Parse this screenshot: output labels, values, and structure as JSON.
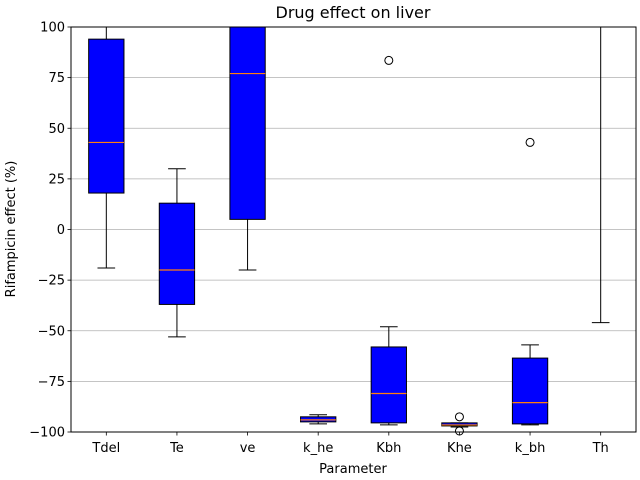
{
  "chart_data": {
    "type": "box",
    "title": "Drug effect on liver",
    "xlabel": "Parameter",
    "ylabel": "Rifampicin effect (%)",
    "ylim": [
      -100,
      100
    ],
    "yticks": [
      -100,
      -75,
      -50,
      -25,
      0,
      25,
      50,
      75,
      100
    ],
    "ytick_labels": [
      "−100",
      "−75",
      "−50",
      "−25",
      "0",
      "25",
      "50",
      "75",
      "100"
    ],
    "grid": "horizontal",
    "box_color": "#0000ff",
    "median_color": "#ff7f0e",
    "categories": [
      "Tdel",
      "Te",
      "ve",
      "k_he",
      "Kbh",
      "Khe",
      "k_bh",
      "Th"
    ],
    "boxes": [
      {
        "label": "Tdel",
        "whislo": -19,
        "q1": 18,
        "med": 43,
        "q3": 94,
        "whishi": 102,
        "fliers": []
      },
      {
        "label": "Te",
        "whislo": -53,
        "q1": -37,
        "med": -20,
        "q3": 13,
        "whishi": 30,
        "fliers": []
      },
      {
        "label": "ve",
        "whislo": -20,
        "q1": 5,
        "med": 77,
        "q3": 102,
        "whishi": 102,
        "fliers": []
      },
      {
        "label": "k_he",
        "whislo": -96,
        "q1": -95,
        "med": -94,
        "q3": -92.5,
        "whishi": -91.5,
        "fliers": []
      },
      {
        "label": "Kbh",
        "whislo": -96.5,
        "q1": -95.5,
        "med": -81,
        "q3": -58,
        "whishi": -48,
        "fliers": [
          83.5
        ]
      },
      {
        "label": "Khe",
        "whislo": -97.5,
        "q1": -97,
        "med": -96.5,
        "q3": -95.5,
        "whishi": -95.5,
        "fliers": [
          -92.5,
          -99.5
        ]
      },
      {
        "label": "k_bh",
        "whislo": -96.5,
        "q1": -96,
        "med": -85.5,
        "q3": -63.5,
        "whishi": -57,
        "fliers": [
          43
        ]
      },
      {
        "label": "Th",
        "whislo": -46,
        "q1": 102,
        "med": 102,
        "q3": 102,
        "whishi": 102,
        "fliers": []
      }
    ]
  }
}
